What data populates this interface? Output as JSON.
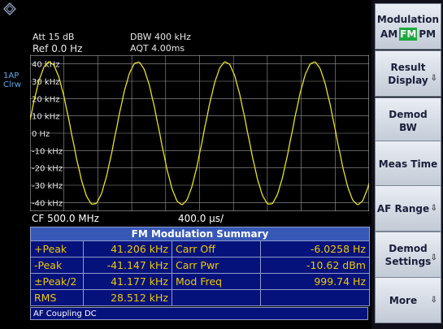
{
  "header": {
    "att": "Att  15 dB",
    "ref": "Ref  0.0 Hz",
    "dbw": "DBW 400 kHz",
    "aqt": "AQT 4.00ms"
  },
  "trace": {
    "line1": "1AP",
    "line2": "Clrw"
  },
  "plot": {
    "y_labels": [
      "40 kHz",
      "30 kHz",
      "20 kHz",
      "10 kHz",
      "0 Hz",
      "-10 kHz",
      "-20 kHz",
      "-30 kHz",
      "-40 kHz"
    ],
    "trace_color": "#e8e020"
  },
  "chart_data": {
    "type": "line",
    "ylabel": "",
    "ylim": [
      -45,
      45
    ],
    "y_ticks": [
      40,
      30,
      20,
      10,
      0,
      -10,
      -20,
      -30,
      -40
    ],
    "x": [
      0,
      0.5,
      1,
      1.5,
      2,
      2.5,
      3,
      3.5,
      4,
      4.5,
      5,
      5.5,
      6,
      6.5,
      7,
      7.5,
      8,
      8.5,
      9,
      9.5,
      10
    ],
    "y": [
      30.5,
      38.3,
      30.5,
      9.0,
      -16.5,
      -36.6,
      -38.3,
      -23.7,
      0.0,
      23.7,
      38.3,
      36.6,
      16.5,
      -9.0,
      -30.5,
      -40.0,
      -30.5,
      -9.0,
      16.5,
      36.6,
      38.3
    ],
    "x_div": "400.0 µs/",
    "amplitude_khz": 41,
    "period_divisions": 2.6
  },
  "cf": {
    "center": "CF 500.0 MHz",
    "div": "400.0 µs/"
  },
  "summary": {
    "title": "FM Modulation Summary",
    "rows": [
      {
        "l1": "+Peak",
        "v1": "41.206 kHz",
        "l2": "Carr Off",
        "v2": "-6.0258 Hz"
      },
      {
        "l1": "-Peak",
        "v1": "-41.147 kHz",
        "l2": "Carr Pwr",
        "v2": "-10.62 dBm"
      },
      {
        "l1": "±Peak/2",
        "v1": "41.177 kHz",
        "l2": "Mod Freq",
        "v2": "999.74 Hz"
      },
      {
        "l1": "RMS",
        "v1": "28.512 kHz",
        "l2": "",
        "v2": ""
      }
    ]
  },
  "footer": "AF Coupling DC",
  "softkeys": {
    "modulation": {
      "title": "Modulation",
      "am": "AM",
      "fm": "FM",
      "pm": "PM"
    },
    "result_display": {
      "line1": "Result",
      "line2": "Display"
    },
    "demod_bw": {
      "line1": "Demod",
      "line2": "BW"
    },
    "meas_time": {
      "line1": "Meas Time"
    },
    "af_range": {
      "line1": "AF Range"
    },
    "demod_settings": {
      "line1": "Demod",
      "line2": "Settings"
    },
    "more": {
      "line1": "More"
    }
  },
  "colors": {
    "accent": "#1ea840",
    "table_bg": "#06127c",
    "table_header": "#3858b8",
    "table_text": "#f0c800"
  }
}
